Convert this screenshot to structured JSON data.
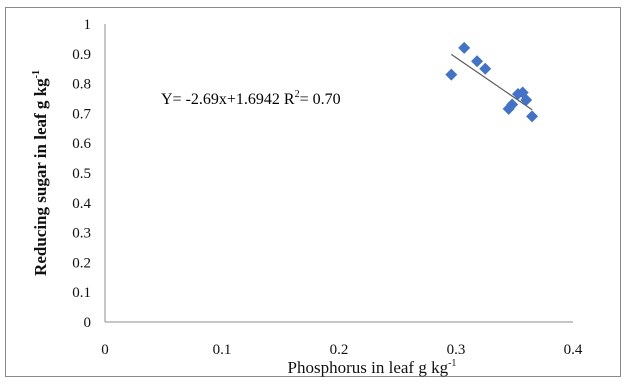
{
  "chart_data": {
    "type": "scatter",
    "xlabel": "Phosphorus  in leaf  g kg",
    "xlabel_sup": "-1",
    "ylabel": "Reducing sugar  in leaf  g kg",
    "ylabel_sup": "-1",
    "xlim": [
      0,
      0.4
    ],
    "ylim": [
      0,
      1
    ],
    "x_ticks": [
      "0",
      "0.1",
      "0.2",
      "0.3",
      "0.4"
    ],
    "y_ticks": [
      "0",
      "0.1",
      "0.2",
      "0.3",
      "0.4",
      "0.5",
      "0.6",
      "0.7",
      "0.8",
      "0.9",
      "1"
    ],
    "grid": false,
    "marker_color": "#4472C4",
    "trendline_color": "#595959",
    "points": [
      {
        "x": 0.296,
        "y": 0.83
      },
      {
        "x": 0.307,
        "y": 0.92
      },
      {
        "x": 0.318,
        "y": 0.875
      },
      {
        "x": 0.325,
        "y": 0.85
      },
      {
        "x": 0.345,
        "y": 0.715
      },
      {
        "x": 0.348,
        "y": 0.73
      },
      {
        "x": 0.353,
        "y": 0.765
      },
      {
        "x": 0.357,
        "y": 0.77
      },
      {
        "x": 0.36,
        "y": 0.745
      },
      {
        "x": 0.365,
        "y": 0.69
      }
    ],
    "trendline": {
      "slope": -2.69,
      "intercept": 1.6942,
      "x_start": 0.296,
      "x_end": 0.365
    },
    "equation_text": "Y= -2.69x+1.6942  R",
    "equation_sup": "2",
    "equation_tail": "= 0.70"
  }
}
